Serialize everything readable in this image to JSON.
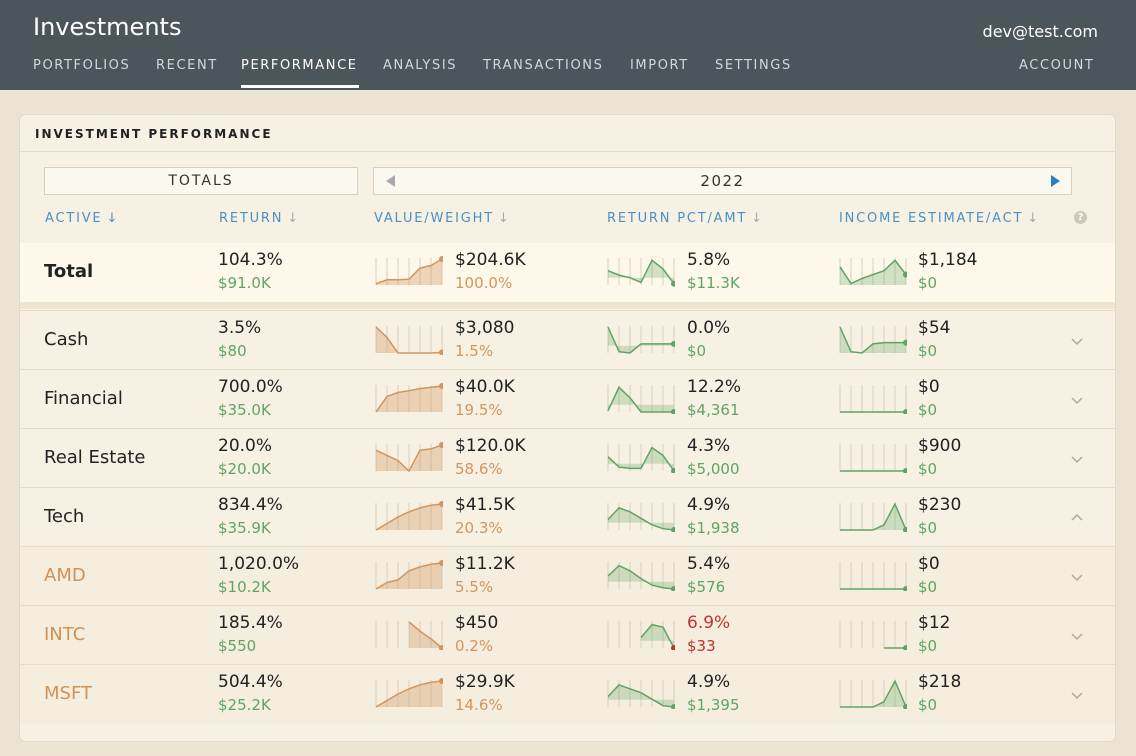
{
  "app": {
    "title": "Investments",
    "account_email": "dev@test.com"
  },
  "nav": [
    {
      "label": "PORTFOLIOS",
      "active": false
    },
    {
      "label": "RECENT",
      "active": false
    },
    {
      "label": "PERFORMANCE",
      "active": true
    },
    {
      "label": "ANALYSIS",
      "active": false
    },
    {
      "label": "TRANSACTIONS",
      "active": false
    },
    {
      "label": "IMPORT",
      "active": false
    },
    {
      "label": "SETTINGS",
      "active": false
    }
  ],
  "account_label": "ACCOUNT",
  "panel": {
    "title": "INVESTMENT PERFORMANCE",
    "totals_label": "TOTALS",
    "year": "2022"
  },
  "columns": {
    "active": "ACTIVE",
    "return": "RETURN",
    "value_weight": "VALUE/WEIGHT",
    "return_pct_amt": "RETURN PCT/AMT",
    "income": "INCOME ESTIMATE/ACT"
  },
  "help_icon": "question-icon",
  "colors": {
    "green": "#5fa466",
    "orange": "#d3955c",
    "red": "#c0332f",
    "link": "#4a90c8",
    "header_bg": "#4a565b"
  },
  "rows": [
    {
      "name": "Total",
      "kind": "total",
      "ret_pct": "104.3%",
      "ret_amt": "$91.0K",
      "value": "$204.6K",
      "weight": "100.0%",
      "rpct": "5.8%",
      "ramt": "$11.3K",
      "rneg": false,
      "income_est": "$1,184",
      "income_act": "$0",
      "spark_value": [
        0.05,
        0.2,
        0.2,
        0.22,
        0.65,
        0.75,
        1.0
      ],
      "spark_return": [
        0.55,
        0.38,
        0.28,
        0.1,
        0.95,
        0.62,
        0.05
      ],
      "spark_income": [
        0.7,
        0.05,
        0.25,
        0.4,
        0.55,
        0.95,
        0.4
      ]
    },
    {
      "name": "Cash",
      "kind": "category",
      "chevron": "chevron-down-icon",
      "ret_pct": "3.5%",
      "ret_amt": "$80",
      "value": "$3,080",
      "weight": "1.5%",
      "rpct": "0.0%",
      "ramt": "$0",
      "rneg": false,
      "income_est": "$54",
      "income_act": "$0",
      "spark_value": [
        1.0,
        0.6,
        0.0,
        0.0,
        0.0,
        0.0,
        0.02
      ],
      "spark_return": [
        1.0,
        0.05,
        0.0,
        0.35,
        0.35,
        0.35,
        0.35
      ],
      "spark_income": [
        1.0,
        0.05,
        0.0,
        0.35,
        0.4,
        0.4,
        0.4
      ]
    },
    {
      "name": "Financial",
      "kind": "category",
      "chevron": "chevron-down-icon",
      "ret_pct": "700.0%",
      "ret_amt": "$35.0K",
      "value": "$40.0K",
      "weight": "19.5%",
      "rpct": "12.2%",
      "ramt": "$4,361",
      "rneg": false,
      "income_est": "$0",
      "income_act": "$0",
      "spark_value": [
        0.0,
        0.6,
        0.75,
        0.82,
        0.9,
        0.95,
        1.0
      ],
      "spark_return": [
        0.05,
        0.95,
        0.55,
        0.0,
        0.0,
        0.0,
        0.0
      ],
      "spark_income": [
        0.0,
        0.0,
        0.0,
        0.0,
        0.0,
        0.0,
        0.0
      ]
    },
    {
      "name": "Real Estate",
      "kind": "category",
      "chevron": "chevron-down-icon",
      "ret_pct": "20.0%",
      "ret_amt": "$20.0K",
      "value": "$120.0K",
      "weight": "58.6%",
      "rpct": "4.3%",
      "ramt": "$5,000",
      "rneg": false,
      "income_est": "$900",
      "income_act": "$0",
      "spark_value": [
        0.8,
        0.6,
        0.4,
        0.0,
        0.8,
        0.85,
        1.0
      ],
      "spark_return": [
        0.55,
        0.15,
        0.1,
        0.1,
        0.9,
        0.6,
        0.0
      ],
      "spark_income": [
        0.0,
        0.0,
        0.0,
        0.0,
        0.0,
        0.0,
        0.0
      ]
    },
    {
      "name": "Tech",
      "kind": "category",
      "chevron": "chevron-up-icon",
      "ret_pct": "834.4%",
      "ret_amt": "$35.9K",
      "value": "$41.5K",
      "weight": "20.3%",
      "rpct": "4.9%",
      "ramt": "$1,938",
      "rneg": false,
      "income_est": "$230",
      "income_act": "$0",
      "spark_value": [
        0.0,
        0.25,
        0.5,
        0.7,
        0.85,
        0.95,
        1.0
      ],
      "spark_return": [
        0.4,
        0.85,
        0.7,
        0.45,
        0.2,
        0.05,
        0.0
      ],
      "spark_income": [
        0.0,
        0.0,
        0.0,
        0.0,
        0.2,
        1.0,
        0.0
      ]
    },
    {
      "name": "AMD",
      "kind": "holding",
      "chevron": "chevron-down-icon",
      "ret_pct": "1,020.0%",
      "ret_amt": "$10.2K",
      "value": "$11.2K",
      "weight": "5.5%",
      "rpct": "5.4%",
      "ramt": "$576",
      "rneg": false,
      "income_est": "$0",
      "income_act": "$0",
      "spark_value": [
        0.0,
        0.25,
        0.35,
        0.7,
        0.85,
        0.95,
        1.0
      ],
      "spark_return": [
        0.5,
        0.9,
        0.7,
        0.4,
        0.15,
        0.05,
        0.0
      ],
      "spark_income": [
        0.0,
        0.0,
        0.0,
        0.0,
        0.0,
        0.0,
        0.0
      ]
    },
    {
      "name": "INTC",
      "kind": "holding",
      "chevron": "chevron-down-icon",
      "ret_pct": "185.4%",
      "ret_amt": "$550",
      "value": "$450",
      "weight": "0.2%",
      "rpct": "6.9%",
      "ramt": "$33",
      "rneg": true,
      "income_est": "$12",
      "income_act": "$0",
      "spark_value": [
        null,
        null,
        null,
        1.0,
        0.65,
        0.35,
        0.0
      ],
      "spark_return": [
        null,
        null,
        null,
        0.4,
        0.9,
        0.8,
        0.0
      ],
      "spark_income": [
        null,
        null,
        null,
        null,
        0.0,
        0.0,
        0.0
      ]
    },
    {
      "name": "MSFT",
      "kind": "holding",
      "chevron": "chevron-down-icon",
      "ret_pct": "504.4%",
      "ret_amt": "$25.2K",
      "value": "$29.9K",
      "weight": "14.6%",
      "rpct": "4.9%",
      "ramt": "$1,395",
      "rneg": false,
      "income_est": "$218",
      "income_act": "$0",
      "spark_value": [
        0.0,
        0.25,
        0.5,
        0.7,
        0.85,
        0.95,
        1.0
      ],
      "spark_return": [
        0.4,
        0.85,
        0.7,
        0.55,
        0.3,
        0.05,
        0.0
      ],
      "spark_income": [
        0.0,
        0.0,
        0.0,
        0.0,
        0.2,
        1.0,
        0.0
      ]
    }
  ]
}
